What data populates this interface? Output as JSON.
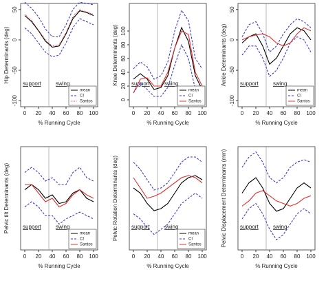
{
  "chart_data": [
    {
      "type": "line",
      "ylabel": "Hip Determinants (deg)",
      "xlabel": "% Running Cycle",
      "x": [
        0,
        10,
        20,
        30,
        40,
        50,
        60,
        70,
        80,
        90,
        100
      ],
      "xlim": [
        -6,
        106
      ],
      "xticks": [
        0,
        20,
        40,
        60,
        80,
        100
      ],
      "ylim": [
        -110,
        60
      ],
      "yticks": [
        -100,
        -50,
        0,
        50
      ],
      "vline": 35,
      "annotations": [
        "support",
        "swing"
      ],
      "legend": "lower right",
      "series": [
        {
          "name": "mean",
          "color": "#000000",
          "dash": "solid",
          "values": [
            40,
            30,
            15,
            -2,
            -12,
            -10,
            10,
            35,
            48,
            45,
            40
          ]
        },
        {
          "name": "CI",
          "color": "#3a3ad0",
          "dash": "dashed",
          "values": [
            62,
            52,
            38,
            18,
            5,
            5,
            25,
            50,
            62,
            60,
            58
          ]
        },
        {
          "name": "CI",
          "color": "#3a3ad0",
          "dash": "dashed",
          "values": [
            20,
            10,
            -5,
            -20,
            -28,
            -25,
            -5,
            20,
            35,
            30,
            25
          ]
        },
        {
          "name": "Santos",
          "color": "#e03030",
          "dash": "dotted",
          "values": [
            42,
            32,
            16,
            0,
            -10,
            -8,
            12,
            38,
            50,
            46,
            42
          ]
        }
      ]
    },
    {
      "type": "line",
      "ylabel": "Knee Determinants (deg)",
      "xlabel": "% Running Cycle",
      "x": [
        0,
        10,
        20,
        30,
        40,
        50,
        60,
        70,
        80,
        90,
        100
      ],
      "xlim": [
        -6,
        106
      ],
      "xticks": [
        0,
        20,
        40,
        60,
        80,
        100
      ],
      "ylim": [
        -10,
        140
      ],
      "yticks": [
        0,
        20,
        40,
        60,
        80,
        100
      ],
      "vline": 35,
      "annotations": [
        "support",
        "swing"
      ],
      "legend": "lower right",
      "series": [
        {
          "name": "mean",
          "color": "#000000",
          "dash": "solid",
          "values": [
            30,
            38,
            30,
            15,
            18,
            35,
            75,
            105,
            85,
            35,
            15
          ]
        },
        {
          "name": "CI",
          "color": "#3a3ad0",
          "dash": "dashed",
          "values": [
            45,
            55,
            48,
            30,
            35,
            55,
            100,
            130,
            115,
            60,
            45
          ]
        },
        {
          "name": "CI",
          "color": "#3a3ad0",
          "dash": "dashed",
          "values": [
            10,
            25,
            15,
            5,
            5,
            18,
            50,
            80,
            60,
            15,
            5
          ]
        },
        {
          "name": "Santos",
          "color": "#e03030",
          "dash": "solid",
          "values": [
            10,
            30,
            32,
            20,
            20,
            40,
            75,
            100,
            95,
            40,
            20
          ]
        }
      ]
    },
    {
      "type": "line",
      "ylabel": "Ankle Determinants (deg)",
      "xlabel": "% Running Cycle",
      "x": [
        0,
        10,
        20,
        30,
        40,
        50,
        60,
        70,
        80,
        90,
        100
      ],
      "xlim": [
        -6,
        106
      ],
      "xticks": [
        0,
        20,
        40,
        60,
        80,
        100
      ],
      "ylim": [
        -110,
        60
      ],
      "yticks": [
        -100,
        -50,
        0,
        50
      ],
      "vline": 35,
      "annotations": [
        "support",
        "swing"
      ],
      "legend": "lower right",
      "series": [
        {
          "name": "mean",
          "color": "#000000",
          "dash": "solid",
          "values": [
            -5,
            5,
            10,
            -10,
            -40,
            -30,
            -10,
            10,
            20,
            15,
            0
          ]
        },
        {
          "name": "CI",
          "color": "#3a3ad0",
          "dash": "dashed",
          "values": [
            5,
            25,
            30,
            10,
            -20,
            -10,
            10,
            25,
            35,
            30,
            20
          ]
        },
        {
          "name": "CI",
          "color": "#3a3ad0",
          "dash": "dashed",
          "values": [
            -25,
            -10,
            -10,
            -30,
            -60,
            -50,
            -30,
            -5,
            5,
            0,
            -20
          ]
        },
        {
          "name": "Santos",
          "color": "#e03030",
          "dash": "solid",
          "values": [
            0,
            5,
            8,
            10,
            5,
            -5,
            -10,
            -5,
            10,
            20,
            15
          ]
        }
      ]
    },
    {
      "type": "line",
      "ylabel": "Pelvic tilt Determinants (deg)",
      "xlabel": "% Running Cycle",
      "x": [
        0,
        10,
        20,
        30,
        40,
        50,
        60,
        70,
        80,
        90,
        100
      ],
      "xlim": [
        -6,
        106
      ],
      "xticks": [
        0,
        20,
        40,
        60,
        80,
        100
      ],
      "ylim": [
        -30,
        30
      ],
      "vline": 35,
      "annotations": [
        "support",
        "swing"
      ],
      "legend": "lower right",
      "series": [
        {
          "name": "mean",
          "color": "#000000",
          "dash": "solid",
          "values": [
            5,
            8,
            5,
            0,
            2,
            -3,
            -2,
            3,
            5,
            0,
            -2
          ]
        },
        {
          "name": "CI",
          "color": "#3a3ad0",
          "dash": "dashed",
          "values": [
            15,
            18,
            15,
            10,
            12,
            8,
            8,
            15,
            18,
            12,
            10
          ]
        },
        {
          "name": "CI",
          "color": "#3a3ad0",
          "dash": "dashed",
          "values": [
            -5,
            -2,
            -5,
            -10,
            -10,
            -15,
            -12,
            -10,
            -8,
            -10,
            -12
          ]
        },
        {
          "name": "Santos",
          "color": "#e03030",
          "dash": "solid",
          "values": [
            8,
            8,
            3,
            -2,
            0,
            -5,
            -3,
            2,
            5,
            2,
            0
          ]
        }
      ]
    },
    {
      "type": "line",
      "ylabel": "Pelvic Rotation Determinants (deg)",
      "xlabel": "% Running Cycle",
      "x": [
        0,
        10,
        20,
        30,
        40,
        50,
        60,
        70,
        80,
        90,
        100
      ],
      "xlim": [
        -6,
        106
      ],
      "xticks": [
        0,
        20,
        40,
        60,
        80,
        100
      ],
      "ylim": [
        -60,
        40
      ],
      "vline": 35,
      "annotations": [
        "support",
        "swing"
      ],
      "legend": "lower right",
      "series": [
        {
          "name": "mean",
          "color": "#000000",
          "dash": "solid",
          "values": [
            0,
            -5,
            -15,
            -22,
            -20,
            -15,
            -5,
            5,
            10,
            12,
            8
          ]
        },
        {
          "name": "CI",
          "color": "#3a3ad0",
          "dash": "dashed",
          "values": [
            25,
            18,
            8,
            -2,
            0,
            5,
            15,
            25,
            30,
            30,
            25
          ]
        },
        {
          "name": "CI",
          "color": "#3a3ad0",
          "dash": "dashed",
          "values": [
            -25,
            -30,
            -38,
            -45,
            -40,
            -35,
            -25,
            -15,
            -10,
            -5,
            -10
          ]
        },
        {
          "name": "Santos",
          "color": "#e03030",
          "dash": "solid",
          "values": [
            10,
            0,
            -10,
            -8,
            -5,
            0,
            5,
            10,
            12,
            10,
            5
          ]
        }
      ]
    },
    {
      "type": "line",
      "ylabel": "Pelvic Displacement Determinants (mm)",
      "xlabel": "% Running Cycle",
      "x": [
        0,
        10,
        20,
        30,
        40,
        50,
        60,
        70,
        80,
        90,
        100
      ],
      "xlim": [
        -6,
        106
      ],
      "xticks": [
        0,
        20,
        40,
        60,
        80,
        100
      ],
      "ylim": [
        -100,
        100
      ],
      "vline": 35,
      "annotations": [
        "support",
        "swing"
      ],
      "series": [
        {
          "name": "mean",
          "color": "#000000",
          "dash": "solid",
          "values": [
            10,
            30,
            40,
            20,
            -10,
            -25,
            -20,
            0,
            20,
            30,
            20
          ]
        },
        {
          "name": "CI",
          "color": "#3a3ad0",
          "dash": "dashed",
          "values": [
            60,
            80,
            90,
            70,
            40,
            30,
            40,
            60,
            70,
            75,
            70
          ]
        },
        {
          "name": "CI",
          "color": "#3a3ad0",
          "dash": "dashed",
          "values": [
            -40,
            -20,
            -10,
            -30,
            -60,
            -80,
            -70,
            -50,
            -30,
            -20,
            -30
          ]
        },
        {
          "name": "Santos",
          "color": "#e03030",
          "dash": "solid",
          "values": [
            -15,
            -5,
            10,
            15,
            5,
            -5,
            -10,
            -15,
            -10,
            0,
            5
          ]
        }
      ]
    }
  ]
}
